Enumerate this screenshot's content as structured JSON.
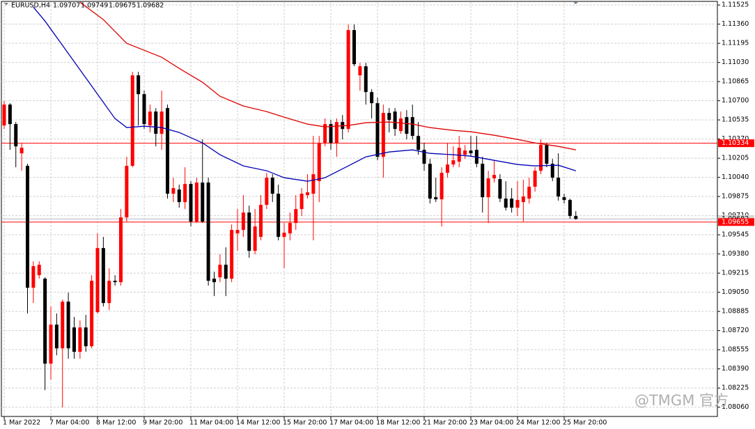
{
  "chart_data": {
    "type": "candlestick",
    "title": "EURUSD,H4",
    "bull_color": "#ff0000",
    "bear_color": "#000000",
    "grid": true,
    "ylim": [
      1.0798,
      1.1155
    ],
    "yticks": [
      1.11525,
      {
        "value": 1.1136,
        "label": "1.11360"
      },
      1.11195,
      {
        "value": 1.1103,
        "label": "1.11030"
      },
      1.10865,
      {
        "value": 1.107,
        "label": "1.10700"
      },
      1.10535,
      {
        "value": 1.1037,
        "label": "1.10370"
      },
      1.10205,
      {
        "value": 1.1004,
        "label": "1.10040"
      },
      1.09875,
      {
        "value": 1.0971,
        "label": "1.09710"
      },
      1.09545,
      {
        "value": 1.0938,
        "label": "1.09380"
      },
      1.09215,
      {
        "value": 1.0905,
        "label": "1.09050"
      },
      1.08885,
      {
        "value": 1.0872,
        "label": "1.08720"
      },
      1.08555,
      {
        "value": 1.0839,
        "label": "1.08390"
      },
      1.08225,
      {
        "value": 1.0806,
        "label": "1.08060"
      }
    ],
    "categories": [
      "1 Mar 2022",
      null,
      null,
      null,
      null,
      null,
      null,
      null,
      "7 Mar 04:00",
      null,
      null,
      null,
      null,
      null,
      null,
      null,
      "8 Mar 12:00",
      null,
      null,
      null,
      null,
      null,
      null,
      null,
      "9 Mar 20:00",
      null,
      null,
      null,
      null,
      null,
      null,
      null,
      "11 Mar 04:00",
      null,
      null,
      null,
      null,
      null,
      null,
      null,
      "14 Mar 12:00",
      null,
      null,
      null,
      null,
      null,
      null,
      null,
      "15 Mar 20:00",
      null,
      null,
      null,
      null,
      null,
      null,
      null,
      "17 Mar 04:00",
      null,
      null,
      null,
      null,
      null,
      null,
      null,
      "18 Mar 12:00",
      null,
      null,
      null,
      null,
      null,
      null,
      null,
      "21 Mar 20:00",
      null,
      null,
      null,
      null,
      null,
      null,
      null,
      "23 Mar 04:00",
      null,
      null,
      null,
      null,
      null,
      null,
      null,
      "24 Mar 12:00",
      null,
      null,
      null,
      null,
      null,
      null,
      null,
      "25 Mar 20:00",
      null,
      null
    ],
    "open": [
      1.10487,
      1.10667,
      1.10499,
      1.10247,
      1.10139,
      1.09089,
      1.09197,
      1.09167,
      1.08435,
      1.08771,
      1.08567,
      1.08969,
      1.08747,
      1.08537,
      1.08747,
      1.08585,
      1.08879,
      1.09431,
      1.08957,
      1.09149,
      1.09137,
      1.09695,
      1.10139,
      1.10919,
      1.10757,
      1.10487,
      1.10607,
      1.10415,
      1.10637,
      1.09899,
      1.09935,
      1.09827,
      1.09983,
      1.09659,
      1.09995,
      1.09995,
      1.09167,
      1.09179,
      1.09287,
      1.09167,
      1.09557,
      1.09587,
      1.09737,
      1.09407,
      1.09527,
      1.09803,
      1.10037,
      1.09899,
      1.09527,
      1.09557,
      1.09647,
      1.09767,
      1.09887,
      1.09899,
      1.10007,
      1.10337,
      1.10499,
      1.10337,
      1.10517,
      1.10457,
      1.11309,
      1.10919,
      1.10997,
      1.10775,
      1.10679,
      1.10217,
      1.10595,
      1.10607,
      1.10439,
      1.10559,
      1.10559,
      1.10397,
      1.10277,
      1.10157,
      1.09869,
      1.09851,
      1.10079,
      1.10151,
      1.10175,
      1.10235,
      1.10271,
      1.10277,
      1.10157,
      1.09869,
      1.10031,
      1.10025,
      1.09857,
      1.09857,
      1.09779,
      1.09827,
      1.09857,
      1.09959,
      1.10097,
      1.10319,
      1.10157,
      1.10037,
      1.09869,
      1.09845,
      1.09707
    ],
    "high": [
      1.10697,
      1.10679,
      1.10517,
      1.10337,
      1.10157,
      1.09317,
      1.09317,
      1.09179,
      1.08927,
      1.08867,
      1.08987,
      1.09047,
      1.08837,
      1.08807,
      1.08855,
      1.09197,
      1.09557,
      1.09527,
      1.09257,
      1.09197,
      1.09767,
      1.10217,
      1.10949,
      1.10949,
      1.10787,
      1.10667,
      1.10637,
      1.10787,
      1.10667,
      1.10037,
      1.09977,
      1.10127,
      1.10007,
      1.10037,
      1.10367,
      1.10037,
      1.09227,
      1.09377,
      1.09437,
      1.09635,
      1.09767,
      1.09887,
      1.09797,
      1.09767,
      1.09887,
      1.10079,
      1.10067,
      1.09977,
      1.09647,
      1.09737,
      1.09887,
      1.09947,
      1.10067,
      1.10397,
      1.10397,
      1.10547,
      1.10535,
      1.10547,
      1.10577,
      1.11357,
      1.11357,
      1.11027,
      1.11027,
      1.10799,
      1.10727,
      1.10667,
      1.10637,
      1.10637,
      1.10607,
      1.10619,
      1.10667,
      1.10517,
      1.10337,
      1.10199,
      1.10037,
      1.10127,
      1.10337,
      1.10307,
      1.10397,
      1.10319,
      1.10397,
      1.10397,
      1.10217,
      1.10097,
      1.10187,
      1.10067,
      1.10007,
      1.09947,
      1.10007,
      1.10019,
      1.10037,
      1.10127,
      1.10367,
      1.10337,
      1.10199,
      1.10247,
      1.09899,
      1.09857,
      1.09749
    ],
    "low": [
      1.10457,
      1.10277,
      1.10127,
      1.10097,
      1.08867,
      1.08957,
      1.09167,
      1.08207,
      1.08297,
      1.08507,
      1.08057,
      1.08477,
      1.08477,
      1.08477,
      1.08537,
      1.08567,
      1.08867,
      1.08927,
      1.08897,
      1.09107,
      1.09107,
      1.09659,
      1.10127,
      1.10487,
      1.10457,
      1.10427,
      1.10307,
      1.10277,
      1.09857,
      1.09827,
      1.09779,
      1.09767,
      1.09617,
      1.09647,
      1.09647,
      1.09107,
      1.09017,
      1.09137,
      1.09017,
      1.09137,
      1.09407,
      1.09527,
      1.09347,
      1.09377,
      1.09497,
      1.09767,
      1.09827,
      1.09497,
      1.09257,
      1.09497,
      1.09587,
      1.09707,
      1.09857,
      1.09497,
      1.09827,
      1.10307,
      1.10277,
      1.10217,
      1.10367,
      1.10427,
      1.10997,
      1.10787,
      1.10667,
      1.10547,
      1.10187,
      1.10037,
      1.10427,
      1.10397,
      1.10415,
      1.10367,
      1.10367,
      1.10235,
      1.10097,
      1.09815,
      1.09827,
      1.09617,
      1.10037,
      1.10127,
      1.10127,
      1.10199,
      1.10217,
      1.10127,
      1.09737,
      1.09647,
      1.09995,
      1.09827,
      1.09755,
      1.09737,
      1.09707,
      1.09659,
      1.09815,
      1.09917,
      1.10067,
      1.10127,
      1.10007,
      1.09839,
      1.09815,
      1.09683,
      1.09675
    ],
    "close": [
      1.10667,
      1.10499,
      1.10307,
      1.10295,
      1.09089,
      1.09275,
      1.09287,
      1.08435,
      1.08771,
      1.08567,
      1.08969,
      1.08567,
      1.08537,
      1.08747,
      1.08585,
      1.09149,
      1.09431,
      1.08957,
      1.09149,
      1.09137,
      1.09695,
      1.10139,
      1.10919,
      1.10757,
      1.10499,
      1.10607,
      1.10415,
      1.10607,
      1.09899,
      1.09947,
      1.09827,
      1.09983,
      1.09659,
      1.09995,
      1.09659,
      1.09149,
      1.09137,
      1.09287,
      1.09167,
      1.09587,
      1.09587,
      1.09737,
      1.09407,
      1.09617,
      1.09803,
      1.10037,
      1.09899,
      1.09527,
      1.09563,
      1.09647,
      1.09767,
      1.09899,
      1.09911,
      1.10067,
      1.10337,
      1.10499,
      1.10337,
      1.10517,
      1.10457,
      1.11309,
      1.11015,
      1.10997,
      1.10775,
      1.10679,
      1.10217,
      1.10595,
      1.10535,
      1.10457,
      1.10547,
      1.10415,
      1.10397,
      1.10277,
      1.10157,
      1.09857,
      1.09851,
      1.10079,
      1.10151,
      1.10187,
      1.10295,
      1.10271,
      1.10247,
      1.10157,
      1.09869,
      1.10031,
      1.10061,
      1.09857,
      1.09779,
      1.09779,
      1.09845,
      1.09875,
      1.09959,
      1.10097,
      1.10319,
      1.10157,
      1.10037,
      1.09875,
      1.09845,
      1.09707,
      1.09682
    ],
    "lines": [
      {
        "color": "#e00000",
        "x": [
          13,
          17,
          21,
          24,
          27,
          30,
          34,
          37,
          41,
          45,
          48,
          52,
          55,
          59,
          62,
          66,
          70,
          73,
          77,
          80,
          84,
          88,
          91,
          95,
          98
        ],
        "values": [
          1.11549,
          1.11399,
          1.11195,
          1.11135,
          1.11075,
          1.10979,
          1.10859,
          1.10739,
          1.10655,
          1.10607,
          1.10559,
          1.10499,
          1.10475,
          1.10487,
          1.10511,
          1.10517,
          1.10499,
          1.10469,
          1.10445,
          1.10433,
          1.10403,
          1.10367,
          1.10337,
          1.10307,
          1.10277
        ]
      },
      {
        "color": "#0000b4",
        "x": [
          5,
          7,
          10,
          13,
          16,
          19,
          21,
          24,
          27,
          30,
          34,
          37,
          41,
          45,
          48,
          52,
          55,
          59,
          62,
          66,
          70,
          73,
          77,
          80,
          84,
          88,
          91,
          95,
          98
        ],
        "values": [
          1.11507,
          1.11387,
          1.11177,
          1.10967,
          1.10757,
          1.10547,
          1.10469,
          1.10481,
          1.10469,
          1.10427,
          1.10337,
          1.10235,
          1.10139,
          1.10097,
          1.10037,
          1.10007,
          1.10037,
          1.10139,
          1.10217,
          1.10259,
          1.10277,
          1.10247,
          1.10235,
          1.10223,
          1.10187,
          1.10151,
          1.10139,
          1.10145,
          1.10097
        ]
      }
    ],
    "price_lines": [
      {
        "value": 1.10334,
        "color": "#ff0000",
        "label_color": "#ff0000",
        "text_color": "#ffffff"
      },
      {
        "value": 1.09682,
        "color": "#b8b8c8",
        "label_color": "#d8d8d8",
        "text_color": "#000000"
      },
      {
        "value": 1.09655,
        "color": "#ff0000",
        "label_color": "#ff0000",
        "text_color": "#ffffff"
      }
    ],
    "watermark": "@TMGM 官方"
  }
}
